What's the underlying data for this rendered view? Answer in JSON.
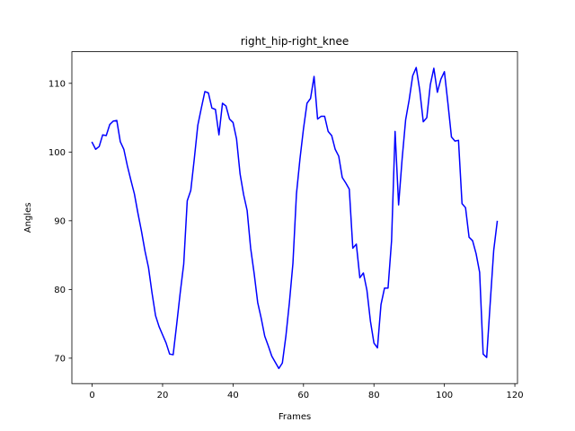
{
  "chart_data": {
    "type": "line",
    "title": "right_hip-right_knee",
    "xlabel": "Frames",
    "ylabel": "Angles",
    "xlim": [
      -5.75,
      120.75
    ],
    "ylim": [
      66.3,
      114.6
    ],
    "xticks": [
      0,
      20,
      40,
      60,
      80,
      100,
      120
    ],
    "yticks": [
      70,
      80,
      90,
      100,
      110
    ],
    "grid": false,
    "legend": "none",
    "series": [
      {
        "color": "#0000ff",
        "x": [
          0,
          1,
          2,
          3,
          4,
          5,
          6,
          7,
          8,
          9,
          10,
          11,
          12,
          13,
          14,
          15,
          16,
          17,
          18,
          19,
          20,
          21,
          22,
          23,
          24,
          25,
          26,
          27,
          28,
          29,
          30,
          31,
          32,
          33,
          34,
          35,
          36,
          37,
          38,
          39,
          40,
          41,
          42,
          43,
          44,
          45,
          46,
          47,
          48,
          49,
          50,
          51,
          52,
          53,
          54,
          55,
          56,
          57,
          58,
          59,
          60,
          61,
          62,
          63,
          64,
          65,
          66,
          67,
          68,
          69,
          70,
          71,
          72,
          73,
          74,
          75,
          76,
          77,
          78,
          79,
          80,
          81,
          82,
          83,
          84,
          85,
          86,
          87,
          88,
          89,
          90,
          91,
          92,
          93,
          94,
          95,
          96,
          97,
          98,
          99,
          100,
          101,
          102,
          103,
          104,
          105,
          106,
          107,
          108,
          109,
          110,
          111,
          112,
          113,
          114,
          115
        ],
        "y": [
          101.4,
          100.4,
          100.8,
          102.5,
          102.4,
          104.0,
          104.5,
          104.6,
          101.5,
          100.4,
          98.0,
          95.9,
          93.9,
          91.1,
          88.5,
          85.6,
          83.2,
          79.5,
          76.2,
          74.6,
          73.4,
          72.2,
          70.6,
          70.5,
          74.9,
          79.5,
          83.7,
          92.9,
          94.4,
          99.0,
          103.9,
          106.4,
          108.8,
          108.6,
          106.4,
          106.2,
          102.5,
          107.1,
          106.7,
          104.8,
          104.3,
          101.9,
          96.8,
          93.8,
          91.5,
          86.0,
          82.3,
          78.1,
          75.8,
          73.2,
          71.8,
          70.3,
          69.4,
          68.5,
          69.3,
          73.2,
          78.1,
          83.8,
          93.9,
          99.0,
          103.4,
          107.1,
          107.8,
          111.0,
          104.8,
          105.2,
          105.2,
          103.0,
          102.4,
          100.4,
          99.4,
          96.3,
          95.5,
          94.6,
          86.0,
          86.6,
          81.7,
          82.4,
          79.9,
          75.4,
          72.2,
          71.5,
          77.8,
          80.2,
          80.2,
          87.1,
          103.0,
          92.3,
          99.0,
          104.7,
          107.6,
          111.1,
          112.3,
          109.0,
          104.4,
          105.0,
          109.8,
          112.2,
          108.7,
          110.6,
          111.7,
          107.1,
          102.2,
          101.6,
          101.7,
          92.5,
          91.9,
          87.6,
          87.1,
          85.2,
          82.5,
          70.6,
          70.1,
          78.0,
          85.7,
          89.9
        ]
      }
    ]
  }
}
